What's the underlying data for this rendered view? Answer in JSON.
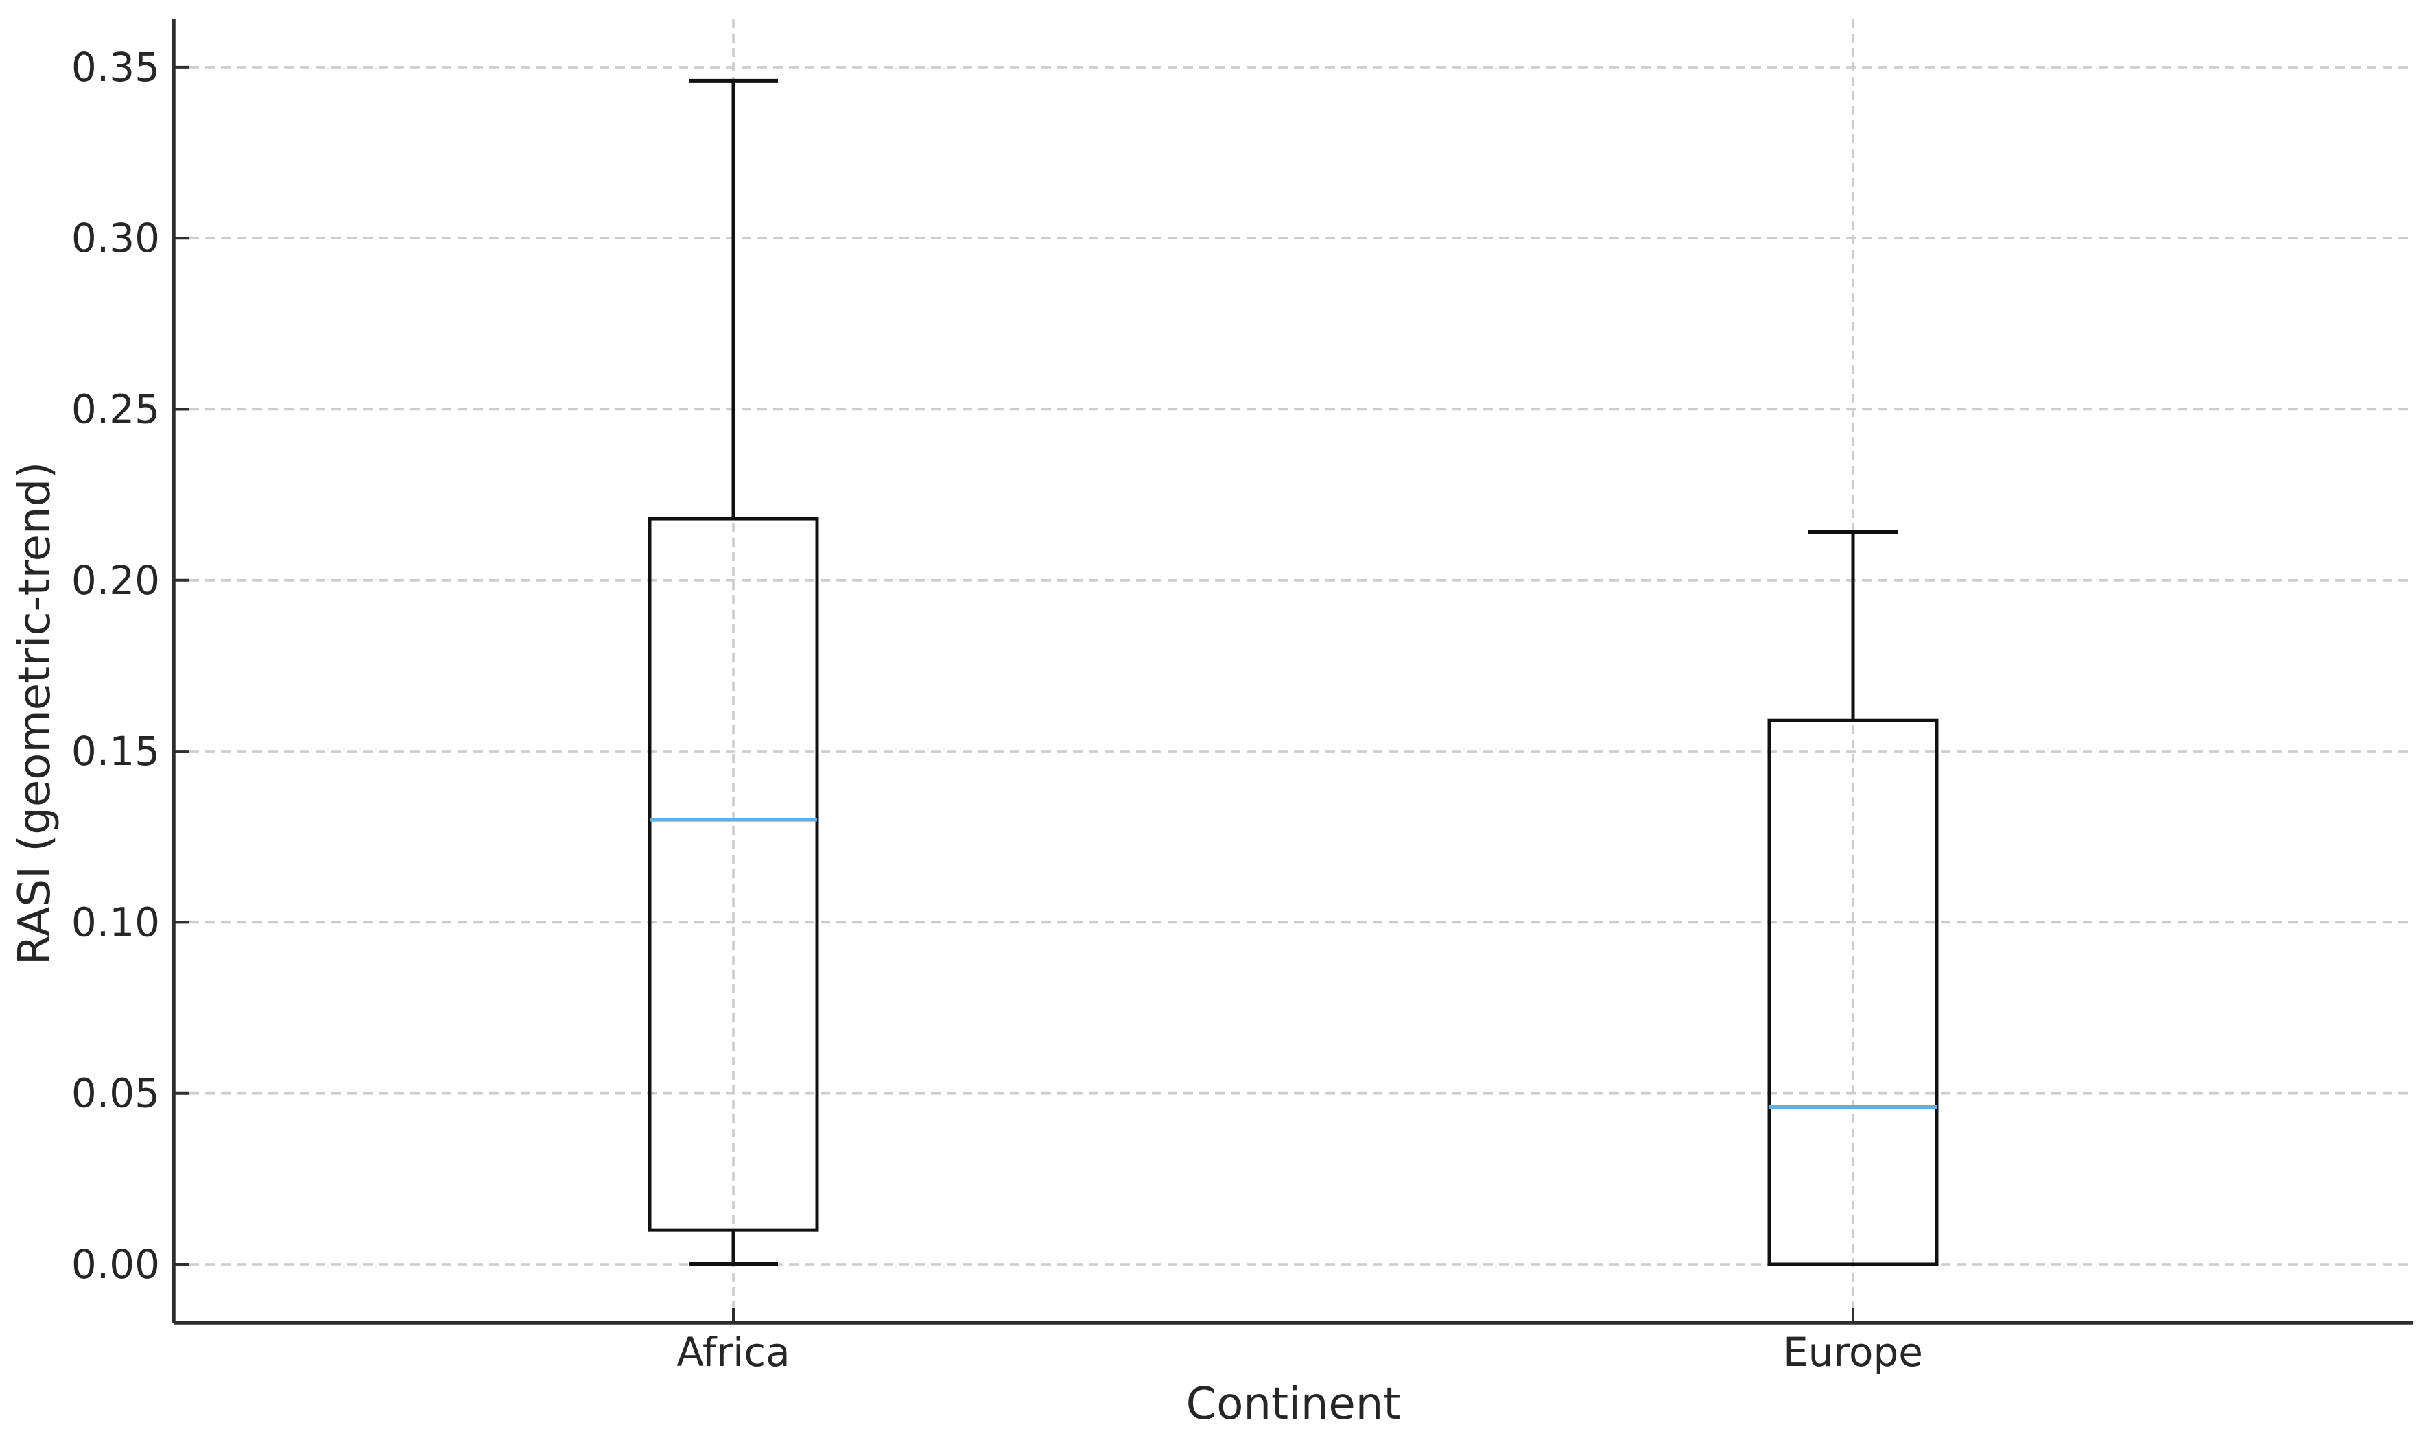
{
  "chart_data": {
    "type": "boxplot",
    "title": "",
    "xlabel": "Continent",
    "ylabel": "RASI (geometric-trend)",
    "categories": [
      "Africa",
      "Europe"
    ],
    "series": [
      {
        "name": "Africa",
        "whisker_low": 0.0,
        "q1": 0.01,
        "median": 0.13,
        "q3": 0.218,
        "whisker_high": 0.346
      },
      {
        "name": "Europe",
        "whisker_low": 0.0,
        "q1": 0.0,
        "median": 0.046,
        "q3": 0.159,
        "whisker_high": 0.214
      }
    ],
    "y_ticks": [
      "0.00",
      "0.05",
      "0.10",
      "0.15",
      "0.20",
      "0.25",
      "0.30",
      "0.35"
    ],
    "ylim": [
      -0.017,
      0.364
    ],
    "grid": {
      "style": "dashed",
      "horizontal_at_yticks": true,
      "vertical_at_categories": true
    },
    "legend": "none",
    "colors": {
      "box_edge": "#111111",
      "median": "#5bb1e6",
      "grid": "#cccccc",
      "spine": "#2e2e2e",
      "text": "#262626",
      "background": "#ffffff"
    }
  }
}
